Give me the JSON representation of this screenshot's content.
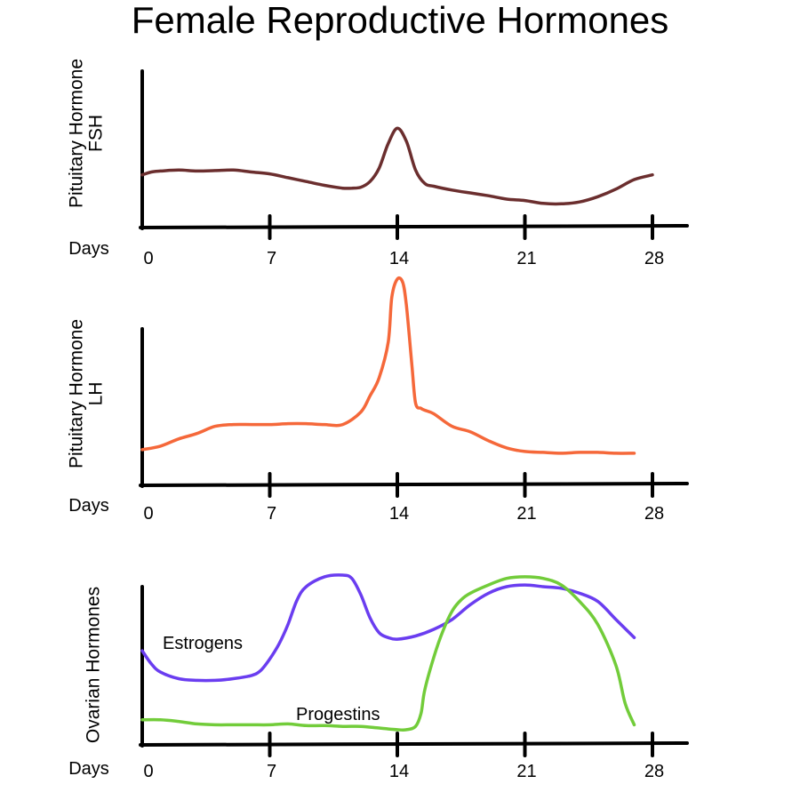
{
  "title": "Female Reproductive Hormones",
  "colors": {
    "fsh": "#6b2e2e",
    "lh": "#f5683a",
    "estrogens": "#6a3df0",
    "progestins": "#72cc3a",
    "axis": "#000000"
  },
  "chart_data": [
    {
      "type": "line",
      "ylabel_lines": [
        "Pituitary Hormone",
        "FSH"
      ],
      "xlabel": "Days",
      "xticks": [
        0,
        7,
        14,
        21,
        28
      ],
      "xlim": [
        0,
        30
      ],
      "ylim": [
        0,
        10
      ],
      "series": [
        {
          "color": "#6b2e2e",
          "x": [
            0,
            0.5,
            1,
            2,
            3,
            4,
            5,
            6,
            7,
            8,
            9,
            10,
            11,
            11.5,
            12,
            12.5,
            13,
            13.5,
            14,
            14.5,
            15,
            15.5,
            16,
            17,
            18,
            19,
            20,
            21,
            22,
            23,
            24,
            25,
            26,
            27,
            28
          ],
          "y": [
            3.3,
            3.6,
            3.7,
            3.8,
            3.7,
            3.75,
            3.8,
            3.6,
            3.4,
            3.0,
            2.6,
            2.2,
            1.9,
            1.9,
            2.0,
            2.6,
            4.0,
            6.6,
            8.2,
            6.8,
            3.8,
            2.4,
            2.1,
            1.7,
            1.4,
            1.1,
            0.75,
            0.6,
            0.3,
            0.25,
            0.45,
            1.0,
            1.8,
            2.8,
            3.3
          ]
        }
      ]
    },
    {
      "type": "line",
      "ylabel_lines": [
        "Pituitary Hormone",
        "LH"
      ],
      "xlabel": "Days",
      "xticks": [
        0,
        7,
        14,
        21,
        28
      ],
      "xlim": [
        0,
        30
      ],
      "ylim": [
        0,
        10
      ],
      "series": [
        {
          "color": "#f5683a",
          "x": [
            0,
            1,
            2,
            3,
            4,
            5,
            6,
            7,
            8,
            9,
            10,
            11,
            12,
            12.5,
            13,
            13.5,
            13.7,
            14,
            14.3,
            14.5,
            14.8,
            15,
            15.3,
            15.5,
            16,
            17,
            18,
            19,
            20,
            21,
            22,
            23,
            24,
            25,
            26,
            27
          ],
          "y": [
            0.5,
            0.7,
            1.1,
            1.4,
            1.8,
            1.9,
            1.9,
            1.9,
            1.95,
            1.95,
            1.9,
            1.9,
            2.6,
            3.5,
            4.5,
            6.5,
            9.0,
            10.0,
            9.8,
            8.5,
            5.2,
            3.1,
            2.8,
            2.7,
            2.5,
            1.8,
            1.5,
            1.0,
            0.6,
            0.4,
            0.35,
            0.3,
            0.35,
            0.35,
            0.3,
            0.3
          ]
        }
      ]
    },
    {
      "type": "line",
      "ylabel_lines": [
        "Ovarian Hormones"
      ],
      "xlabel": "Days",
      "xticks": [
        0,
        7,
        14,
        21,
        28
      ],
      "xlim": [
        0,
        30
      ],
      "ylim": [
        0,
        10
      ],
      "series": [
        {
          "name": "Estrogens",
          "color": "#6a3df0",
          "x": [
            0,
            0.5,
            1,
            2,
            3,
            4,
            5,
            6,
            6.5,
            7,
            7.5,
            8,
            8.5,
            9,
            10,
            11,
            11.5,
            12,
            12.5,
            13,
            13.5,
            14,
            15,
            16,
            17,
            18,
            19,
            20,
            21,
            22,
            23,
            24,
            25,
            26,
            27
          ],
          "y": [
            5.4,
            4.6,
            4.1,
            3.7,
            3.6,
            3.6,
            3.7,
            3.9,
            4.2,
            4.9,
            5.8,
            7.0,
            8.5,
            9.3,
            9.9,
            10.0,
            9.8,
            8.8,
            7.4,
            6.5,
            6.2,
            6.1,
            6.3,
            6.7,
            7.3,
            8.2,
            8.9,
            9.3,
            9.4,
            9.3,
            9.2,
            8.9,
            8.4,
            7.3,
            6.2
          ]
        },
        {
          "name": "Progestins",
          "color": "#72cc3a",
          "x": [
            0,
            1,
            2,
            3,
            4,
            5,
            6,
            7,
            8,
            9,
            10,
            11,
            12,
            13,
            14,
            14.5,
            15,
            15.3,
            15.5,
            16,
            16.5,
            17,
            17.5,
            18,
            19,
            20,
            21,
            22,
            23,
            24,
            25,
            26,
            26.5,
            27
          ],
          "y": [
            1.2,
            1.2,
            1.1,
            0.95,
            0.9,
            0.9,
            0.9,
            0.9,
            0.95,
            0.85,
            0.85,
            0.8,
            0.8,
            0.7,
            0.6,
            0.6,
            0.8,
            1.6,
            3.0,
            5.0,
            6.6,
            7.8,
            8.5,
            8.9,
            9.4,
            9.8,
            9.9,
            9.8,
            9.4,
            8.4,
            7.0,
            4.5,
            2.2,
            0.9
          ]
        }
      ]
    }
  ]
}
